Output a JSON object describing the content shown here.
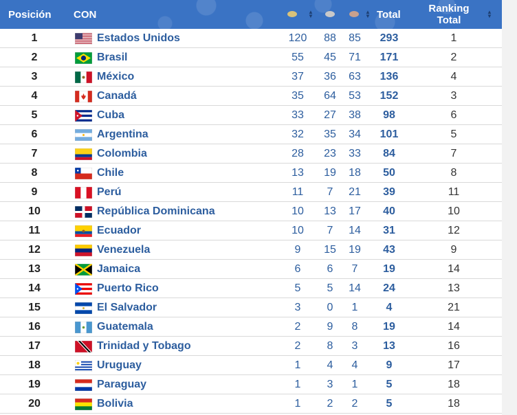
{
  "header": {
    "pos": "Posición",
    "con": "CON",
    "total": "Total",
    "ranking_line1": "Ranking",
    "ranking_line2": "Total",
    "medal_colors": {
      "gold": "#d9c27a",
      "silver": "#c9c9c9",
      "bronze": "#c9a18e"
    }
  },
  "colors": {
    "header_bg": "#3a73c4",
    "link": "#2c5d9e"
  },
  "rows": [
    {
      "pos": "1",
      "name": "Estados Unidos",
      "gold": "120",
      "silver": "88",
      "bronze": "85",
      "total": "293",
      "rank": "1",
      "flag": "usa"
    },
    {
      "pos": "2",
      "name": "Brasil",
      "gold": "55",
      "silver": "45",
      "bronze": "71",
      "total": "171",
      "rank": "2",
      "flag": "brazil"
    },
    {
      "pos": "3",
      "name": "México",
      "gold": "37",
      "silver": "36",
      "bronze": "63",
      "total": "136",
      "rank": "4",
      "flag": "mexico"
    },
    {
      "pos": "4",
      "name": "Canadá",
      "gold": "35",
      "silver": "64",
      "bronze": "53",
      "total": "152",
      "rank": "3",
      "flag": "canada"
    },
    {
      "pos": "5",
      "name": "Cuba",
      "gold": "33",
      "silver": "27",
      "bronze": "38",
      "total": "98",
      "rank": "6",
      "flag": "cuba"
    },
    {
      "pos": "6",
      "name": "Argentina",
      "gold": "32",
      "silver": "35",
      "bronze": "34",
      "total": "101",
      "rank": "5",
      "flag": "argentina"
    },
    {
      "pos": "7",
      "name": "Colombia",
      "gold": "28",
      "silver": "23",
      "bronze": "33",
      "total": "84",
      "rank": "7",
      "flag": "colombia"
    },
    {
      "pos": "8",
      "name": "Chile",
      "gold": "13",
      "silver": "19",
      "bronze": "18",
      "total": "50",
      "rank": "8",
      "flag": "chile"
    },
    {
      "pos": "9",
      "name": "Perú",
      "gold": "11",
      "silver": "7",
      "bronze": "21",
      "total": "39",
      "rank": "11",
      "flag": "peru"
    },
    {
      "pos": "10",
      "name": "República Dominicana",
      "gold": "10",
      "silver": "13",
      "bronze": "17",
      "total": "40",
      "rank": "10",
      "flag": "dominican"
    },
    {
      "pos": "11",
      "name": "Ecuador",
      "gold": "10",
      "silver": "7",
      "bronze": "14",
      "total": "31",
      "rank": "12",
      "flag": "ecuador"
    },
    {
      "pos": "12",
      "name": "Venezuela",
      "gold": "9",
      "silver": "15",
      "bronze": "19",
      "total": "43",
      "rank": "9",
      "flag": "venezuela"
    },
    {
      "pos": "13",
      "name": "Jamaica",
      "gold": "6",
      "silver": "6",
      "bronze": "7",
      "total": "19",
      "rank": "14",
      "flag": "jamaica"
    },
    {
      "pos": "14",
      "name": "Puerto Rico",
      "gold": "5",
      "silver": "5",
      "bronze": "14",
      "total": "24",
      "rank": "13",
      "flag": "puertorico"
    },
    {
      "pos": "15",
      "name": "El Salvador",
      "gold": "3",
      "silver": "0",
      "bronze": "1",
      "total": "4",
      "rank": "21",
      "flag": "elsalvador"
    },
    {
      "pos": "16",
      "name": "Guatemala",
      "gold": "2",
      "silver": "9",
      "bronze": "8",
      "total": "19",
      "rank": "14",
      "flag": "guatemala"
    },
    {
      "pos": "17",
      "name": "Trinidad y Tobago",
      "gold": "2",
      "silver": "8",
      "bronze": "3",
      "total": "13",
      "rank": "16",
      "flag": "trinidad"
    },
    {
      "pos": "18",
      "name": "Uruguay",
      "gold": "1",
      "silver": "4",
      "bronze": "4",
      "total": "9",
      "rank": "17",
      "flag": "uruguay"
    },
    {
      "pos": "19",
      "name": "Paraguay",
      "gold": "1",
      "silver": "3",
      "bronze": "1",
      "total": "5",
      "rank": "18",
      "flag": "paraguay"
    },
    {
      "pos": "20",
      "name": "Bolivia",
      "gold": "1",
      "silver": "2",
      "bronze": "2",
      "total": "5",
      "rank": "18",
      "flag": "bolivia"
    }
  ]
}
